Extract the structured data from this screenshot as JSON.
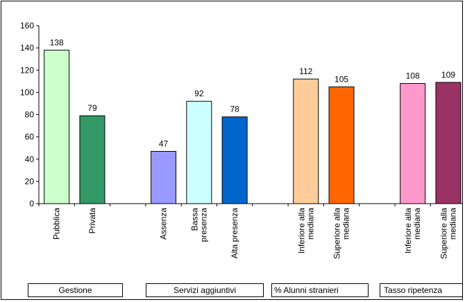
{
  "chart_data": {
    "type": "bar",
    "ylim": [
      0,
      160
    ],
    "yticks": [
      0,
      20,
      40,
      60,
      80,
      100,
      120,
      140,
      160
    ],
    "grid": false,
    "categories": [
      [
        "Pubblica"
      ],
      [
        "Privata"
      ],
      [
        "Assenza"
      ],
      [
        "Bassa",
        "presenza"
      ],
      [
        "Alta presenza"
      ],
      [
        "Inferiore alla",
        "mediana"
      ],
      [
        "Superiore alla",
        "mediana"
      ],
      [
        "Inferiore alla",
        "mediana"
      ],
      [
        "Superiore alla",
        "mediana"
      ]
    ],
    "values": [
      138,
      79,
      47,
      92,
      78,
      112,
      105,
      108,
      109
    ],
    "groups": [
      {
        "label": "Gestione",
        "bars": [
          0,
          1
        ]
      },
      {
        "label": "Servizi aggiuntivi",
        "bars": [
          2,
          3,
          4
        ]
      },
      {
        "label": "% Alunni stranieri",
        "bars": [
          5,
          6
        ]
      },
      {
        "label": "Tasso ripetenza",
        "bars": [
          7,
          8
        ]
      }
    ],
    "colors": [
      "#ccffcc",
      "#339966",
      "#9999ff",
      "#ccffff",
      "#0066cc",
      "#ffcc99",
      "#ff6600",
      "#ff99cc",
      "#993366"
    ]
  }
}
